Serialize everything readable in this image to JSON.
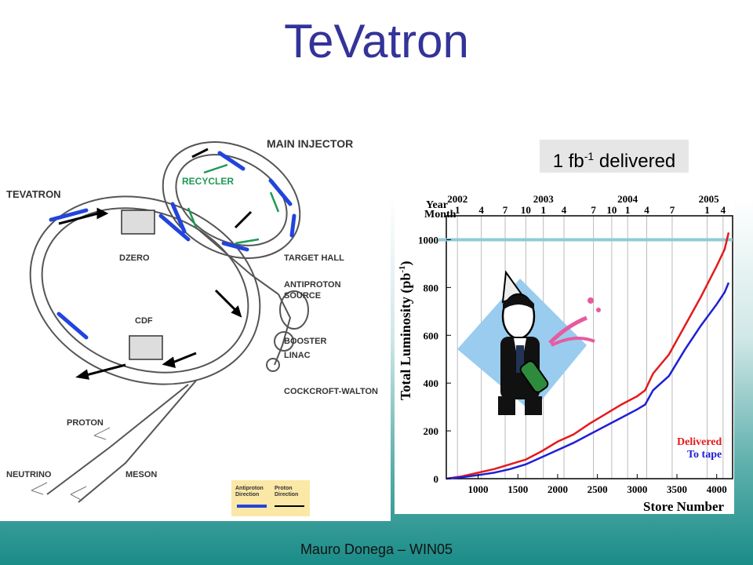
{
  "slide": {
    "title": "TeVatron",
    "footer": "Mauro Donega – WIN05"
  },
  "badge": {
    "prefix": "1 fb",
    "exp": "-1",
    "suffix": " delivered"
  },
  "diagram": {
    "labels": {
      "main_injector": "MAIN INJECTOR",
      "recycler": "RECYCLER",
      "tevatron": "TEVATRON",
      "dzero": "DZERO",
      "cdf": "CDF",
      "target_hall": "TARGET HALL",
      "antiproton_source_1": "ANTIPROTON",
      "antiproton_source_2": "SOURCE",
      "booster": "BOOSTER",
      "linac": "LINAC",
      "cockcroft": "COCKCROFT-WALTON",
      "proton": "PROTON",
      "neutrino": "NEUTRINO",
      "meson": "MESON"
    },
    "legend": {
      "antiproton_1": "Antiproton",
      "antiproton_2": "Direction",
      "proton_1": "Proton",
      "proton_2": "Direction"
    }
  },
  "chart_data": {
    "type": "line",
    "xlabel": "Store Number",
    "ylabel_main": "Total Luminosity (pb",
    "ylabel_exp": "-1",
    "ylabel_tail": ")",
    "xlim": [
      600,
      4200
    ],
    "ylim": [
      0,
      1100
    ],
    "x_ticks": [
      1000,
      1500,
      2000,
      2500,
      3000,
      3500,
      4000
    ],
    "y_ticks": [
      0,
      200,
      400,
      600,
      800,
      1000
    ],
    "top_axis": {
      "year_label": "Year",
      "month_label": "Month",
      "years": [
        {
          "label": "2002",
          "x": 740
        },
        {
          "label": "2003",
          "x": 1820
        },
        {
          "label": "2004",
          "x": 2880
        },
        {
          "label": "2005",
          "x": 3900
        }
      ],
      "months": [
        {
          "label": "1",
          "x": 740
        },
        {
          "label": "4",
          "x": 1040
        },
        {
          "label": "7",
          "x": 1340
        },
        {
          "label": "10",
          "x": 1600
        },
        {
          "label": "1",
          "x": 1820
        },
        {
          "label": "4",
          "x": 2080
        },
        {
          "label": "7",
          "x": 2450
        },
        {
          "label": "10",
          "x": 2680
        },
        {
          "label": "1",
          "x": 2880
        },
        {
          "label": "4",
          "x": 3120
        },
        {
          "label": "7",
          "x": 3440
        },
        {
          "label": "1",
          "x": 3880
        },
        {
          "label": "4",
          "x": 4080
        }
      ]
    },
    "reference_line": 1000,
    "series": [
      {
        "name": "Delivered",
        "color": "#e41a1c",
        "x": [
          600,
          800,
          1000,
          1200,
          1400,
          1600,
          1800,
          2000,
          2200,
          2400,
          2600,
          2800,
          3000,
          3100,
          3200,
          3400,
          3600,
          3800,
          4000,
          4100,
          4150
        ],
        "y": [
          0,
          10,
          25,
          40,
          60,
          80,
          115,
          155,
          185,
          230,
          270,
          310,
          345,
          370,
          440,
          520,
          640,
          760,
          890,
          960,
          1030
        ]
      },
      {
        "name": "To tape",
        "color": "#1f1fd6",
        "x": [
          600,
          800,
          1000,
          1200,
          1400,
          1600,
          1800,
          2000,
          2200,
          2400,
          2600,
          2800,
          3000,
          3100,
          3200,
          3400,
          3600,
          3800,
          4000,
          4100,
          4150
        ],
        "y": [
          0,
          6,
          15,
          25,
          40,
          60,
          90,
          120,
          150,
          185,
          220,
          255,
          290,
          310,
          370,
          430,
          540,
          640,
          730,
          780,
          820
        ]
      }
    ]
  },
  "colors": {
    "title": "#333399",
    "proton_arrow": "#000000",
    "antiproton_arrow": "#2244dd",
    "recycler_arrow": "#1d9a55"
  }
}
